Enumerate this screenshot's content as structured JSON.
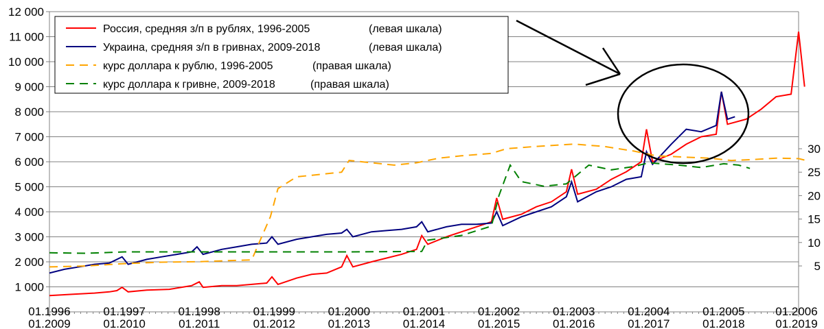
{
  "chart_data": {
    "type": "line",
    "title": "",
    "xlabel": "",
    "ylabel": "",
    "ylim_left": [
      0,
      12000
    ],
    "ylim_right": [
      0,
      35
    ],
    "left_ticks": [
      "12 000",
      "11 000",
      "10 000",
      "9 000",
      "8 000",
      "7 000",
      "6 000",
      "5 000",
      "4 000",
      "3 000",
      "2 000",
      "1 000"
    ],
    "left_tick_values": [
      12000,
      11000,
      10000,
      9000,
      8000,
      7000,
      6000,
      5000,
      4000,
      3000,
      2000,
      1000
    ],
    "right_ticks": [
      "30",
      "25",
      "20",
      "15",
      "10",
      "5"
    ],
    "right_tick_values": [
      30,
      25,
      20,
      15,
      10,
      5
    ],
    "x_ticks_top": [
      "01.1996",
      "01.1997",
      "01.1998",
      "01.1999",
      "01.2000",
      "01.2001",
      "01.2002",
      "01.2003",
      "01.2004",
      "01.2005",
      "01.2006"
    ],
    "x_ticks_bottom": [
      "01.2009",
      "01.2010",
      "01.2011",
      "01.2012",
      "01.2013",
      "01.2014",
      "01.2015",
      "01.2016",
      "01.2017",
      "01.2018",
      "01.2019"
    ],
    "grid": "horizontal",
    "legend_position": "top-left",
    "annotations": [
      {
        "kind": "ellipse",
        "note": "circled 2004-2005 / 2017-2018 segment"
      },
      {
        "kind": "arrow",
        "note": "arrow pointing to circle"
      }
    ],
    "series": [
      {
        "name": "Россия, средняя з/п в рублях, 1996-2005",
        "suffix": "(левая шкала)",
        "axis": "left",
        "color": "#ff0000",
        "dash": "solid",
        "points": [
          [
            0,
            650
          ],
          [
            0.3,
            700
          ],
          [
            0.6,
            750
          ],
          [
            0.8,
            800
          ],
          [
            0.9,
            850
          ],
          [
            0.97,
            980
          ],
          [
            1.05,
            800
          ],
          [
            1.3,
            870
          ],
          [
            1.6,
            900
          ],
          [
            1.8,
            1000
          ],
          [
            1.9,
            1050
          ],
          [
            2.0,
            1200
          ],
          [
            2.05,
            980
          ],
          [
            2.3,
            1050
          ],
          [
            2.5,
            1050
          ],
          [
            2.7,
            1100
          ],
          [
            2.9,
            1150
          ],
          [
            2.97,
            1400
          ],
          [
            3.05,
            1100
          ],
          [
            3.3,
            1350
          ],
          [
            3.5,
            1500
          ],
          [
            3.7,
            1550
          ],
          [
            3.9,
            1800
          ],
          [
            3.97,
            2250
          ],
          [
            4.05,
            1800
          ],
          [
            4.3,
            2000
          ],
          [
            4.5,
            2150
          ],
          [
            4.7,
            2300
          ],
          [
            4.9,
            2500
          ],
          [
            4.97,
            3050
          ],
          [
            5.05,
            2700
          ],
          [
            5.3,
            3000
          ],
          [
            5.5,
            3200
          ],
          [
            5.7,
            3400
          ],
          [
            5.9,
            3600
          ],
          [
            5.97,
            4550
          ],
          [
            6.05,
            3700
          ],
          [
            6.3,
            3900
          ],
          [
            6.5,
            4200
          ],
          [
            6.7,
            4400
          ],
          [
            6.9,
            4800
          ],
          [
            6.97,
            5700
          ],
          [
            7.05,
            4700
          ],
          [
            7.3,
            4900
          ],
          [
            7.5,
            5300
          ],
          [
            7.7,
            5600
          ],
          [
            7.9,
            6000
          ],
          [
            7.97,
            7300
          ],
          [
            8.05,
            6000
          ],
          [
            8.3,
            6300
          ],
          [
            8.5,
            6700
          ],
          [
            8.7,
            7000
          ],
          [
            8.9,
            7100
          ],
          [
            8.97,
            8800
          ],
          [
            9.05,
            7500
          ],
          [
            9.3,
            7700
          ],
          [
            9.5,
            8100
          ],
          [
            9.7,
            8600
          ],
          [
            9.9,
            8700
          ],
          [
            10.0,
            11200
          ],
          [
            10.08,
            9000
          ]
        ]
      },
      {
        "name": "Украина, средняя з/п в гривнах, 2009-2018",
        "suffix": "(левая шкала)",
        "axis": "left",
        "color": "#00007f",
        "dash": "solid",
        "points": [
          [
            0,
            1550
          ],
          [
            0.2,
            1700
          ],
          [
            0.4,
            1800
          ],
          [
            0.6,
            1900
          ],
          [
            0.8,
            1950
          ],
          [
            0.97,
            2200
          ],
          [
            1.05,
            1900
          ],
          [
            1.3,
            2100
          ],
          [
            1.5,
            2200
          ],
          [
            1.7,
            2300
          ],
          [
            1.9,
            2400
          ],
          [
            1.97,
            2600
          ],
          [
            2.05,
            2300
          ],
          [
            2.3,
            2500
          ],
          [
            2.5,
            2600
          ],
          [
            2.7,
            2700
          ],
          [
            2.9,
            2750
          ],
          [
            2.97,
            3000
          ],
          [
            3.05,
            2700
          ],
          [
            3.3,
            2900
          ],
          [
            3.5,
            3000
          ],
          [
            3.7,
            3100
          ],
          [
            3.9,
            3150
          ],
          [
            3.97,
            3300
          ],
          [
            4.05,
            3000
          ],
          [
            4.3,
            3200
          ],
          [
            4.5,
            3250
          ],
          [
            4.7,
            3300
          ],
          [
            4.9,
            3400
          ],
          [
            4.97,
            3600
          ],
          [
            5.05,
            3200
          ],
          [
            5.3,
            3400
          ],
          [
            5.5,
            3500
          ],
          [
            5.7,
            3500
          ],
          [
            5.9,
            3550
          ],
          [
            5.97,
            4000
          ],
          [
            6.05,
            3450
          ],
          [
            6.3,
            3800
          ],
          [
            6.5,
            4000
          ],
          [
            6.7,
            4200
          ],
          [
            6.9,
            4600
          ],
          [
            6.97,
            5200
          ],
          [
            7.05,
            4400
          ],
          [
            7.3,
            4800
          ],
          [
            7.5,
            5000
          ],
          [
            7.7,
            5300
          ],
          [
            7.9,
            5400
          ],
          [
            7.97,
            6400
          ],
          [
            8.05,
            5900
          ],
          [
            8.3,
            6700
          ],
          [
            8.5,
            7300
          ],
          [
            8.7,
            7200
          ],
          [
            8.9,
            7450
          ],
          [
            8.97,
            8800
          ],
          [
            9.05,
            7700
          ],
          [
            9.15,
            7800
          ]
        ]
      },
      {
        "name": "курс доллара к рублю, 1996-2005",
        "suffix": "(правая шкала)",
        "axis": "right",
        "color": "#ffa500",
        "dash": "12,8",
        "points": [
          [
            0,
            4.8
          ],
          [
            0.5,
            5.0
          ],
          [
            1.0,
            5.5
          ],
          [
            1.5,
            5.8
          ],
          [
            2.0,
            5.9
          ],
          [
            2.5,
            6.2
          ],
          [
            2.7,
            6.3
          ],
          [
            2.8,
            10.0
          ],
          [
            2.95,
            15.5
          ],
          [
            3.05,
            21.5
          ],
          [
            3.3,
            24.0
          ],
          [
            3.6,
            24.5
          ],
          [
            3.9,
            25.0
          ],
          [
            4.0,
            27.5
          ],
          [
            4.3,
            27.0
          ],
          [
            4.6,
            26.5
          ],
          [
            4.9,
            27.0
          ],
          [
            5.2,
            28.0
          ],
          [
            5.5,
            28.5
          ],
          [
            5.9,
            29.0
          ],
          [
            6.1,
            30.0
          ],
          [
            6.5,
            30.5
          ],
          [
            7.0,
            31.0
          ],
          [
            7.4,
            30.5
          ],
          [
            7.8,
            29.5
          ],
          [
            8.1,
            28.5
          ],
          [
            8.5,
            28.2
          ],
          [
            8.8,
            28.0
          ],
          [
            9.1,
            27.5
          ],
          [
            9.4,
            27.7
          ],
          [
            9.7,
            28.0
          ],
          [
            10.0,
            27.9
          ],
          [
            10.1,
            27.5
          ]
        ]
      },
      {
        "name": "курс доллара к гривне, 2009-2018",
        "suffix": "(правая шкала)",
        "axis": "right",
        "color": "#008000",
        "dash": "12,8",
        "points": [
          [
            0,
            7.8
          ],
          [
            0.5,
            7.7
          ],
          [
            1.0,
            8.0
          ],
          [
            2.0,
            8.0
          ],
          [
            3.0,
            8.0
          ],
          [
            4.0,
            8.0
          ],
          [
            4.97,
            8.1
          ],
          [
            5.05,
            10.5
          ],
          [
            5.5,
            11.5
          ],
          [
            5.9,
            13.5
          ],
          [
            6.0,
            20.0
          ],
          [
            6.15,
            26.5
          ],
          [
            6.3,
            23.0
          ],
          [
            6.6,
            22.0
          ],
          [
            6.9,
            22.5
          ],
          [
            7.2,
            26.5
          ],
          [
            7.5,
            25.5
          ],
          [
            7.8,
            26.2
          ],
          [
            8.0,
            27.0
          ],
          [
            8.4,
            26.5
          ],
          [
            8.7,
            26.0
          ],
          [
            9.0,
            26.8
          ],
          [
            9.2,
            26.5
          ],
          [
            9.35,
            25.8
          ]
        ]
      }
    ]
  }
}
